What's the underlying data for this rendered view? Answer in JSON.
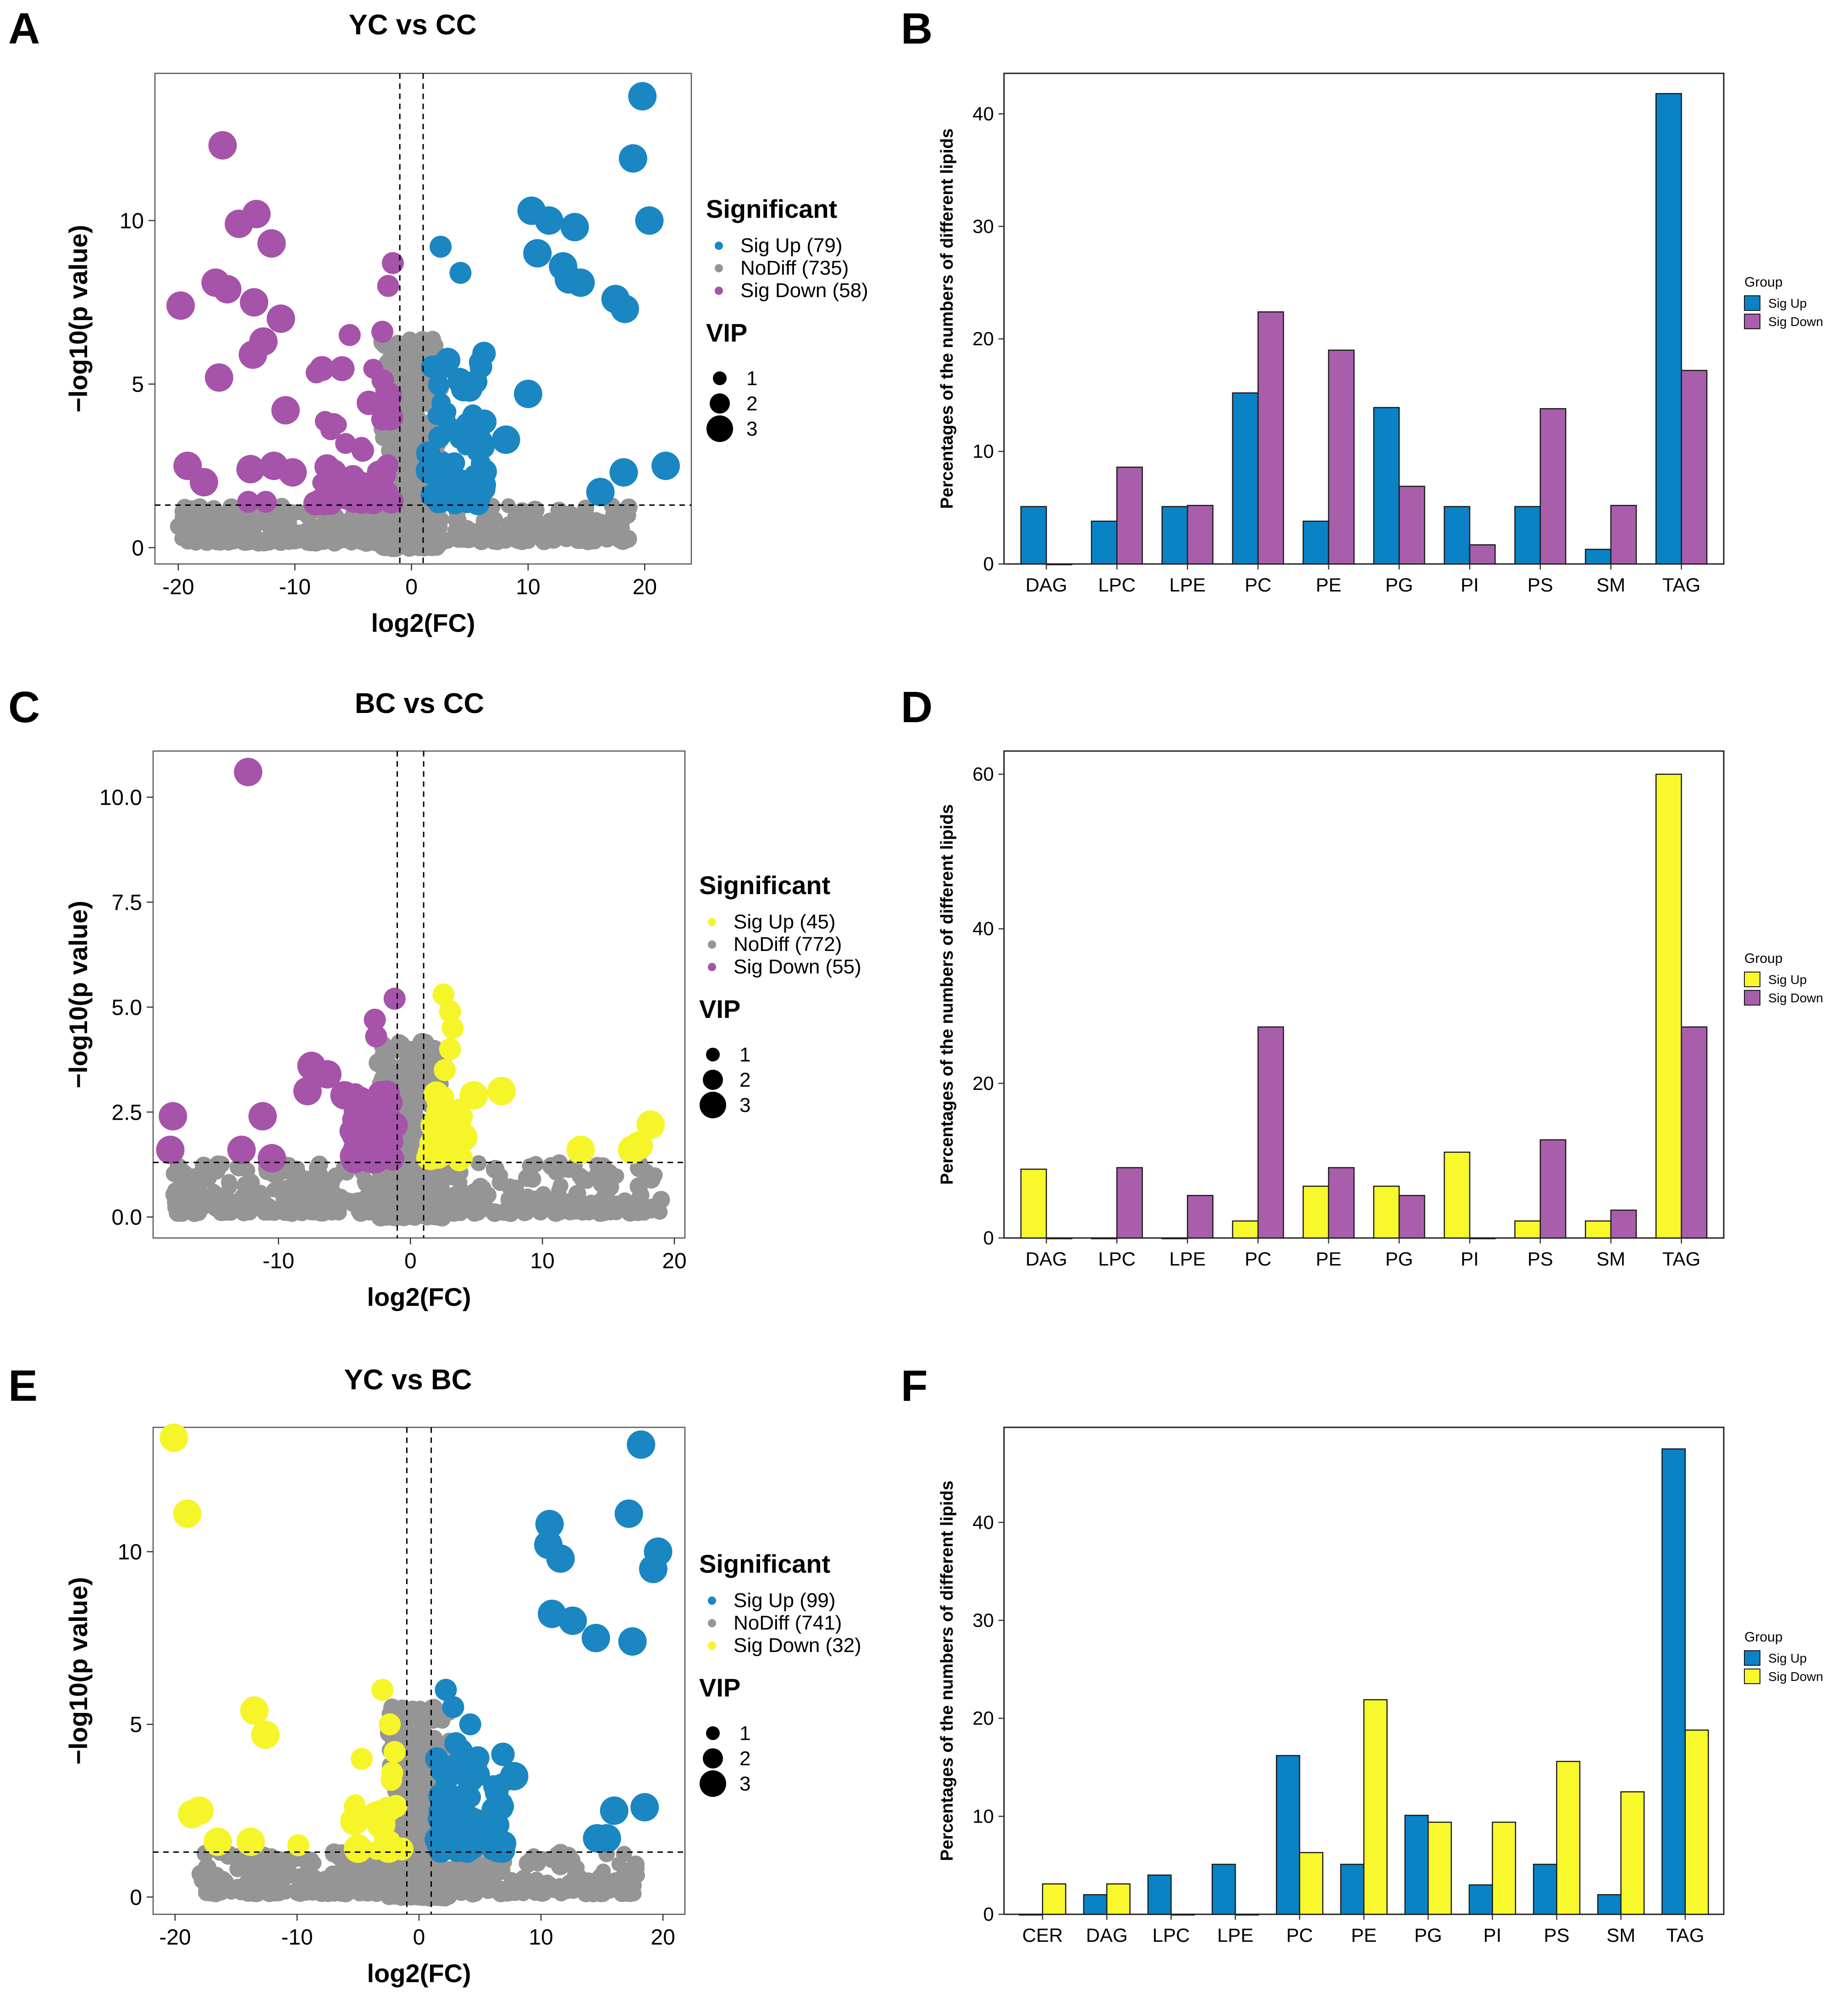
{
  "figure": {
    "panel_letters": [
      "A",
      "B",
      "C",
      "D",
      "E",
      "F"
    ]
  },
  "colors": {
    "sig_up_blue": "#1a86c2",
    "sig_down_purple": "#a653aa",
    "sig_yellow": "#f5f52a",
    "nodiff_gray": "#959595",
    "bar_blue": "#0a82c6",
    "bar_purple": "#a95eac",
    "bar_yellow": "#f8f82c"
  },
  "chart_data": [
    {
      "panel": "A",
      "type": "scatter",
      "title": "YC vs CC",
      "xlabel": "log2(FC)",
      "ylabel": "−log10(p value)",
      "xlim": [
        -22,
        24
      ],
      "ylim": [
        -0.5,
        14.5
      ],
      "xticks": [
        -20,
        -10,
        0,
        10,
        20
      ],
      "yticks": [
        0,
        5,
        10
      ],
      "ytick_labels": [
        "0",
        "5",
        "10"
      ],
      "vlines": [
        -1,
        1
      ],
      "hline": 1.3,
      "legend_title": "Significant",
      "legend": [
        {
          "label": "Sig Up (79)",
          "color": "sig_up_blue"
        },
        {
          "label": "NoDiff (735)",
          "color": "nodiff_gray"
        },
        {
          "label": "Sig Down (58)",
          "color": "sig_down_purple"
        }
      ],
      "vip_title": "VIP",
      "vip_levels": [
        "1",
        "2",
        "3"
      ],
      "seed": 11,
      "up_color": "sig_up_blue",
      "down_color": "sig_down_purple",
      "up_points": [
        [
          19.8,
          13.8,
          3
        ],
        [
          19.0,
          11.9,
          3
        ],
        [
          20.4,
          10.0,
          3
        ],
        [
          10.3,
          10.3,
          3
        ],
        [
          11.8,
          10.0,
          3
        ],
        [
          14.0,
          9.8,
          3
        ],
        [
          10.8,
          9.0,
          3
        ],
        [
          13.0,
          8.6,
          3
        ],
        [
          13.5,
          8.2,
          3
        ],
        [
          14.5,
          8.1,
          3
        ],
        [
          17.5,
          7.6,
          3
        ],
        [
          18.3,
          7.3,
          3
        ],
        [
          2.5,
          9.2,
          2
        ],
        [
          4.2,
          8.4,
          2
        ],
        [
          10.0,
          4.7,
          3
        ],
        [
          5.8,
          3.2,
          3
        ],
        [
          8.1,
          3.3,
          3
        ],
        [
          21.8,
          2.5,
          3
        ],
        [
          18.2,
          2.3,
          3
        ],
        [
          16.2,
          1.7,
          3
        ]
      ],
      "down_points": [
        [
          -16.2,
          12.3,
          3
        ],
        [
          -13.3,
          10.2,
          3
        ],
        [
          -14.8,
          9.9,
          3
        ],
        [
          -12.0,
          9.3,
          3
        ],
        [
          -16.8,
          8.1,
          3
        ],
        [
          -15.8,
          7.9,
          3
        ],
        [
          -19.8,
          7.4,
          3
        ],
        [
          -13.5,
          7.5,
          3
        ],
        [
          -11.2,
          7.0,
          3
        ],
        [
          -12.7,
          6.3,
          3
        ],
        [
          -13.6,
          5.9,
          3
        ],
        [
          -16.5,
          5.2,
          3
        ],
        [
          -10.8,
          4.2,
          3
        ],
        [
          -1.6,
          8.7,
          2
        ],
        [
          -2.0,
          8.0,
          2
        ],
        [
          -5.3,
          6.5,
          2
        ],
        [
          -2.5,
          6.6,
          2
        ],
        [
          -19.2,
          2.5,
          3
        ],
        [
          -17.8,
          2.0,
          3
        ],
        [
          -13.8,
          2.4,
          3
        ],
        [
          -11.8,
          2.5,
          3
        ],
        [
          -10.2,
          2.3,
          3
        ],
        [
          -12.5,
          1.4,
          2
        ],
        [
          -14.0,
          1.4,
          2
        ]
      ],
      "up_cluster": {
        "x": [
          1.2,
          6.5
        ],
        "y": [
          1.35,
          6.0
        ],
        "n": 80,
        "vip": [
          1.3,
          2.6
        ]
      },
      "down_cluster": {
        "x": [
          -8.5,
          -1.2
        ],
        "y": [
          1.35,
          5.6
        ],
        "n": 45,
        "vip": [
          1.3,
          2.8
        ]
      },
      "gray_clusters": [
        {
          "x": [
            -2.5,
            2.5
          ],
          "y": [
            0.0,
            6.4
          ],
          "n": 420,
          "vip": [
            0.9,
            1.6
          ]
        },
        {
          "x": [
            -20.0,
            -3.0
          ],
          "y": [
            0.15,
            1.3
          ],
          "n": 170,
          "vip": [
            0.9,
            1.5
          ]
        },
        {
          "x": [
            3.0,
            19.0
          ],
          "y": [
            0.2,
            1.3
          ],
          "n": 130,
          "vip": [
            0.9,
            1.5
          ]
        }
      ]
    },
    {
      "panel": "B",
      "type": "bar",
      "ylabel": "Percentages of the numbers of different lipids",
      "categories": [
        "DAG",
        "LPC",
        "LPE",
        "PC",
        "PE",
        "PG",
        "PI",
        "PS",
        "SM",
        "TAG"
      ],
      "ylim": [
        0,
        43.6
      ],
      "yticks": [
        0,
        10,
        20,
        30,
        40
      ],
      "ytick_labels": [
        "0",
        "10",
        "20",
        "30",
        "40"
      ],
      "legend_title": "Group",
      "series": [
        {
          "name": "Sig Up",
          "color": "bar_blue",
          "values": [
            5.1,
            3.8,
            5.1,
            15.2,
            3.8,
            13.9,
            5.1,
            5.1,
            1.3,
            41.8
          ]
        },
        {
          "name": "Sig Down",
          "color": "bar_purple",
          "values": [
            0,
            8.6,
            5.2,
            22.4,
            19.0,
            6.9,
            1.7,
            13.8,
            5.2,
            17.2
          ]
        }
      ]
    },
    {
      "panel": "C",
      "type": "scatter",
      "title": "BC vs CC",
      "xlabel": "log2(FC)",
      "ylabel": "−log10(p value)",
      "xlim": [
        -19.5,
        20.8
      ],
      "ylim": [
        -0.5,
        11.1
      ],
      "xticks": [
        -10,
        0,
        10,
        20
      ],
      "yticks": [
        0,
        2.5,
        5,
        7.5,
        10
      ],
      "ytick_labels": [
        "0.0",
        "2.5",
        "5.0",
        "7.5",
        "10.0"
      ],
      "vlines": [
        -1,
        1
      ],
      "hline": 1.3,
      "legend_title": "Significant",
      "legend": [
        {
          "label": "Sig Up (45)",
          "color": "sig_yellow"
        },
        {
          "label": "NoDiff (772)",
          "color": "nodiff_gray"
        },
        {
          "label": "Sig Down (55)",
          "color": "sig_down_purple"
        }
      ],
      "vip_title": "VIP",
      "vip_levels": [
        "1",
        "2",
        "3"
      ],
      "seed": 23,
      "up_color": "sig_yellow",
      "down_color": "sig_down_purple",
      "up_points": [
        [
          2.5,
          5.3,
          2
        ],
        [
          3.0,
          4.9,
          2
        ],
        [
          3.2,
          4.5,
          2
        ],
        [
          3.0,
          4.0,
          2
        ],
        [
          2.6,
          3.5,
          2
        ],
        [
          4.8,
          2.9,
          3
        ],
        [
          6.9,
          3.0,
          3
        ],
        [
          4.0,
          1.9,
          3
        ],
        [
          18.2,
          2.2,
          3
        ],
        [
          17.3,
          1.7,
          3
        ],
        [
          16.8,
          1.6,
          3
        ],
        [
          12.9,
          1.6,
          3
        ],
        [
          3.7,
          1.35,
          2
        ]
      ],
      "down_points": [
        [
          -12.3,
          10.6,
          3
        ],
        [
          -1.2,
          5.2,
          2
        ],
        [
          -2.7,
          4.7,
          2
        ],
        [
          -2.6,
          4.3,
          2
        ],
        [
          -7.5,
          3.6,
          3
        ],
        [
          -6.3,
          3.4,
          3
        ],
        [
          -7.8,
          3.0,
          3
        ],
        [
          -5.0,
          2.9,
          3
        ],
        [
          -18.0,
          2.4,
          3
        ],
        [
          -11.2,
          2.4,
          3
        ],
        [
          -18.2,
          1.6,
          3
        ],
        [
          -12.8,
          1.6,
          3
        ],
        [
          -10.5,
          1.4,
          3
        ],
        [
          -3.0,
          2.6,
          3
        ]
      ],
      "up_cluster": {
        "x": [
          1.3,
          4.0
        ],
        "y": [
          1.4,
          3.2
        ],
        "n": 40,
        "vip": [
          1.4,
          2.6
        ]
      },
      "down_cluster": {
        "x": [
          -4.5,
          -1.2
        ],
        "y": [
          1.35,
          3.0
        ],
        "n": 45,
        "vip": [
          1.6,
          2.9
        ]
      },
      "gray_clusters": [
        {
          "x": [
            -2.5,
            2.5
          ],
          "y": [
            0.0,
            4.2
          ],
          "n": 420,
          "vip": [
            0.9,
            1.6
          ]
        },
        {
          "x": [
            -18.0,
            -3.0
          ],
          "y": [
            0.1,
            1.3
          ],
          "n": 190,
          "vip": [
            0.9,
            1.5
          ]
        },
        {
          "x": [
            3.0,
            19.0
          ],
          "y": [
            0.1,
            1.3
          ],
          "n": 140,
          "vip": [
            0.9,
            1.5
          ]
        }
      ]
    },
    {
      "panel": "D",
      "type": "bar",
      "ylabel": "Percentages of the numbers of different lipids",
      "categories": [
        "DAG",
        "LPC",
        "LPE",
        "PC",
        "PE",
        "PG",
        "PI",
        "PS",
        "SM",
        "TAG"
      ],
      "ylim": [
        0,
        63
      ],
      "yticks": [
        0,
        20,
        40,
        60
      ],
      "ytick_labels": [
        "0",
        "20",
        "40",
        "60"
      ],
      "legend_title": "Group",
      "series": [
        {
          "name": "Sig Up",
          "color": "bar_yellow",
          "values": [
            8.9,
            0,
            0,
            2.2,
            6.7,
            6.7,
            11.1,
            2.2,
            2.2,
            60.0
          ]
        },
        {
          "name": "Sig Down",
          "color": "bar_purple",
          "values": [
            0,
            9.1,
            5.5,
            27.3,
            9.1,
            5.5,
            0,
            12.7,
            3.6,
            27.3
          ]
        }
      ]
    },
    {
      "panel": "E",
      "type": "scatter",
      "title": "YC vs BC",
      "xlabel": "log2(FC)",
      "ylabel": "−log10(p value)",
      "xlim": [
        -21.8,
        21.8
      ],
      "ylim": [
        -0.5,
        13.6
      ],
      "xticks": [
        -20,
        -10,
        0,
        10,
        20
      ],
      "yticks": [
        0,
        5,
        10
      ],
      "ytick_labels": [
        "0",
        "5",
        "10"
      ],
      "vlines": [
        -1,
        1
      ],
      "hline": 1.3,
      "legend_title": "Significant",
      "legend": [
        {
          "label": "Sig Up (99)",
          "color": "sig_up_blue"
        },
        {
          "label": "NoDiff (741)",
          "color": "nodiff_gray"
        },
        {
          "label": "Sig Down (32)",
          "color": "sig_yellow"
        }
      ],
      "vip_title": "VIP",
      "vip_levels": [
        "1",
        "2",
        "3"
      ],
      "seed": 37,
      "up_color": "sig_up_blue",
      "down_color": "sig_yellow",
      "up_points": [
        [
          18.2,
          13.1,
          3
        ],
        [
          10.7,
          10.8,
          3
        ],
        [
          17.2,
          11.1,
          3
        ],
        [
          10.6,
          10.2,
          3
        ],
        [
          11.6,
          9.8,
          3
        ],
        [
          19.6,
          10.0,
          3
        ],
        [
          19.2,
          9.5,
          3
        ],
        [
          10.9,
          8.2,
          3
        ],
        [
          12.6,
          8.0,
          3
        ],
        [
          14.5,
          7.5,
          3
        ],
        [
          17.5,
          7.4,
          3
        ],
        [
          2.2,
          6.0,
          2
        ],
        [
          2.8,
          5.5,
          2
        ],
        [
          4.2,
          5.0,
          2
        ],
        [
          7.8,
          3.5,
          3
        ],
        [
          16.0,
          2.5,
          3
        ],
        [
          18.5,
          2.6,
          3
        ],
        [
          15.4,
          1.7,
          3
        ],
        [
          14.6,
          1.7,
          3
        ]
      ],
      "down_points": [
        [
          -20.1,
          13.3,
          3
        ],
        [
          -19.0,
          11.1,
          3
        ],
        [
          -13.5,
          5.4,
          3
        ],
        [
          -12.6,
          4.7,
          3
        ],
        [
          -3.0,
          6.0,
          2
        ],
        [
          -2.4,
          5.0,
          2
        ],
        [
          -2.0,
          4.2,
          2
        ],
        [
          -4.7,
          4.0,
          2
        ],
        [
          -2.2,
          3.6,
          2
        ],
        [
          -18.6,
          2.4,
          3
        ],
        [
          -18.0,
          2.5,
          3
        ],
        [
          -16.5,
          1.6,
          3
        ],
        [
          -13.8,
          1.6,
          3
        ],
        [
          -9.9,
          1.5,
          2
        ],
        [
          -5.3,
          2.2,
          3
        ],
        [
          -3.1,
          2.1,
          3
        ],
        [
          -5.0,
          1.4,
          3
        ],
        [
          -2.5,
          1.4,
          3
        ]
      ],
      "up_cluster": {
        "x": [
          1.3,
          7.0
        ],
        "y": [
          1.35,
          4.5
        ],
        "n": 85,
        "vip": [
          1.3,
          2.6
        ]
      },
      "down_cluster": {
        "x": [
          -5.5,
          -1.3
        ],
        "y": [
          1.35,
          3.5
        ],
        "n": 12,
        "vip": [
          1.4,
          2.6
        ]
      },
      "gray_clusters": [
        {
          "x": [
            -2.5,
            2.5
          ],
          "y": [
            0.0,
            5.5
          ],
          "n": 420,
          "vip": [
            0.9,
            1.6
          ]
        },
        {
          "x": [
            -18.0,
            -3.0
          ],
          "y": [
            0.1,
            1.3
          ],
          "n": 170,
          "vip": [
            0.9,
            1.5
          ]
        },
        {
          "x": [
            3.0,
            18.0
          ],
          "y": [
            0.1,
            1.3
          ],
          "n": 140,
          "vip": [
            0.9,
            1.5
          ]
        }
      ]
    },
    {
      "panel": "F",
      "type": "bar",
      "ylabel": "Percentages of the numbers of different lipids",
      "categories": [
        "CER",
        "DAG",
        "LPC",
        "LPE",
        "PC",
        "PE",
        "PG",
        "PI",
        "PS",
        "SM",
        "TAG"
      ],
      "ylim": [
        0,
        49.7
      ],
      "yticks": [
        0,
        10,
        20,
        30,
        40
      ],
      "ytick_labels": [
        "0",
        "10",
        "20",
        "30",
        "40"
      ],
      "legend_title": "Group",
      "series": [
        {
          "name": "Sig Up",
          "color": "bar_blue",
          "values": [
            0,
            2.0,
            4.0,
            5.1,
            16.2,
            5.1,
            10.1,
            3.0,
            5.1,
            2.0,
            47.5
          ]
        },
        {
          "name": "Sig Down",
          "color": "bar_yellow",
          "values": [
            3.1,
            3.1,
            0,
            0,
            6.3,
            21.9,
            9.4,
            9.4,
            15.6,
            12.5,
            18.8
          ]
        }
      ]
    }
  ]
}
